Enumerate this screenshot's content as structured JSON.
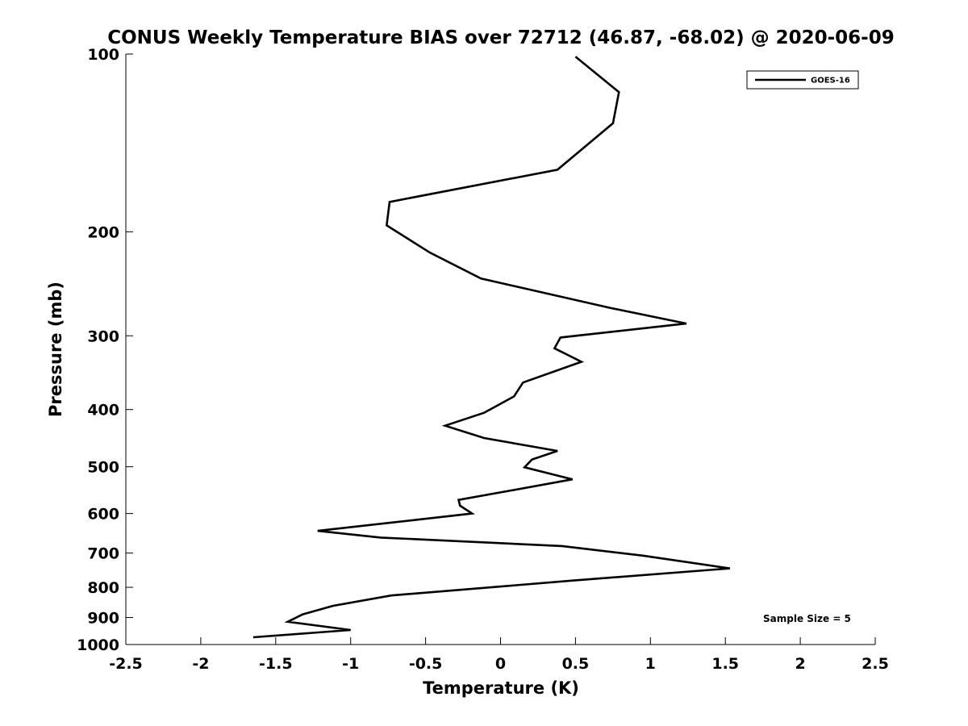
{
  "chart_data": {
    "type": "line",
    "title": "CONUS Weekly Temperature BIAS over 72712 (46.87, -68.02) @ 2020-06-09",
    "xlabel": "Temperature (K)",
    "ylabel": "Pressure (mb)",
    "xlim": [
      -2.5,
      2.5
    ],
    "ylim": [
      1000,
      100
    ],
    "yscale": "log",
    "xticks": [
      -2.5,
      -2,
      -1.5,
      -1,
      -0.5,
      0,
      0.5,
      1,
      1.5,
      2,
      2.5
    ],
    "xtick_labels": [
      "-2.5",
      "-2",
      "-1.5",
      "-1",
      "-0.5",
      "0",
      "0.5",
      "1",
      "1.5",
      "2",
      "2.5"
    ],
    "yticks": [
      100,
      200,
      300,
      400,
      500,
      600,
      700,
      800,
      900,
      1000
    ],
    "ytick_labels": [
      "100",
      "200",
      "300",
      "400",
      "500",
      "600",
      "700",
      "800",
      "900",
      "1000"
    ],
    "grid": false,
    "legend_position": "top-right",
    "line_color": "#000000",
    "series": [
      {
        "name": "GOES-16",
        "x": [
          0.5,
          0.79,
          0.75,
          0.38,
          -0.74,
          -0.76,
          -0.47,
          -0.13,
          0.73,
          1.24,
          0.4,
          0.36,
          0.54,
          0.15,
          0.09,
          -0.11,
          -0.37,
          -0.11,
          0.38,
          0.21,
          0.16,
          0.48,
          0.06,
          -0.28,
          -0.27,
          -0.19,
          -1.22,
          -0.8,
          0.41,
          0.95,
          1.53,
          0.49,
          -0.73,
          -1.12,
          -1.32,
          -1.42,
          -1.0,
          -1.65
        ],
        "y": [
          101,
          116,
          131,
          157,
          178,
          195,
          217,
          240,
          269,
          286,
          302,
          315,
          332,
          360,
          380,
          405,
          426,
          447,
          470,
          486,
          501,
          525,
          549,
          569,
          582,
          600,
          642,
          659,
          681,
          707,
          743,
          779,
          826,
          860,
          889,
          915,
          945,
          972
        ]
      }
    ],
    "legend_entries": [
      "GOES-16"
    ],
    "annotation": "Sample Size = 5"
  }
}
